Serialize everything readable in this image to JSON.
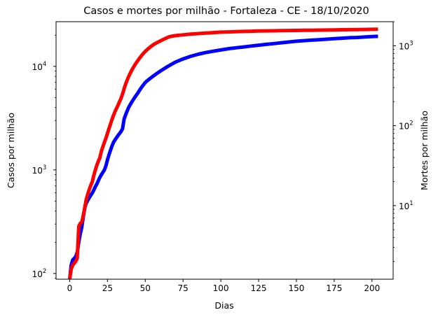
{
  "chart_data": {
    "type": "line",
    "title": "Casos e mortes por milhão - Fortaleza - CE - 18/10/2020",
    "xlabel": "Dias",
    "xlim": [
      -9,
      214
    ],
    "x_ticks": [
      0,
      25,
      50,
      75,
      100,
      125,
      150,
      175,
      200
    ],
    "grid": false,
    "y_left": {
      "label": "Casos por milhão",
      "label_color": "#0000ff",
      "scale": "log",
      "ylim": [
        88,
        27000
      ],
      "ticks": [
        {
          "value": 100,
          "base": "10",
          "exp": "2"
        },
        {
          "value": 1000,
          "base": "10",
          "exp": "3"
        },
        {
          "value": 10000,
          "base": "10",
          "exp": "4"
        }
      ]
    },
    "y_right": {
      "label": "Mortes por milhão",
      "label_color": "#ff0000",
      "scale": "log",
      "ylim": [
        1.2,
        2000
      ],
      "ticks": [
        {
          "value": 10,
          "base": "10",
          "exp": "1"
        },
        {
          "value": 100,
          "base": "10",
          "exp": "2"
        },
        {
          "value": 1000,
          "base": "10",
          "exp": "3"
        }
      ]
    },
    "series": [
      {
        "axis": "left",
        "color": "#0000ff",
        "x": [
          0,
          1,
          2,
          3,
          4,
          5,
          6,
          7,
          8,
          9,
          10,
          11,
          12,
          13,
          14,
          15,
          16,
          17,
          18,
          19,
          20,
          21,
          22,
          23,
          24,
          25,
          26,
          27,
          28,
          29,
          30,
          31,
          32,
          33,
          34,
          35,
          36,
          37,
          38,
          39,
          40,
          41,
          42,
          43,
          44,
          45,
          46,
          47,
          48,
          49,
          50,
          51,
          52,
          53,
          54,
          55,
          56,
          57,
          58,
          59,
          60,
          61,
          62,
          63,
          64,
          65,
          66,
          67,
          68,
          69,
          70,
          75,
          80,
          85,
          90,
          95,
          100,
          105,
          110,
          115,
          120,
          125,
          130,
          135,
          140,
          145,
          150,
          155,
          160,
          165,
          170,
          175,
          180,
          185,
          190,
          195,
          200,
          204
        ],
        "y": [
          88,
          120,
          135,
          140,
          145,
          160,
          200,
          240,
          280,
          350,
          430,
          480,
          510,
          540,
          570,
          600,
          640,
          690,
          730,
          790,
          850,
          900,
          950,
          1000,
          1100,
          1250,
          1400,
          1550,
          1700,
          1850,
          1950,
          2050,
          2150,
          2250,
          2350,
          2500,
          3100,
          3400,
          3700,
          4000,
          4250,
          4500,
          4750,
          5000,
          5250,
          5500,
          5800,
          6100,
          6400,
          6700,
          7000,
          7200,
          7400,
          7600,
          7800,
          8000,
          8200,
          8400,
          8600,
          8800,
          9000,
          9200,
          9400,
          9600,
          9800,
          10000,
          10200,
          10400,
          10600,
          10800,
          11000,
          11800,
          12500,
          13100,
          13600,
          14000,
          14400,
          14800,
          15100,
          15400,
          15700,
          16000,
          16300,
          16600,
          16900,
          17200,
          17500,
          17700,
          17900,
          18100,
          18300,
          18500,
          18700,
          18900,
          19000,
          19200,
          19400,
          19500
        ]
      },
      {
        "axis": "right",
        "color": "#ff0000",
        "x": [
          0,
          1,
          2,
          3,
          4,
          5,
          6,
          7,
          8,
          9,
          10,
          11,
          12,
          13,
          14,
          15,
          16,
          17,
          18,
          19,
          20,
          21,
          22,
          23,
          24,
          25,
          26,
          27,
          28,
          29,
          30,
          31,
          32,
          33,
          34,
          35,
          36,
          37,
          38,
          39,
          40,
          41,
          42,
          43,
          44,
          45,
          46,
          47,
          48,
          49,
          50,
          52,
          54,
          56,
          58,
          60,
          62,
          64,
          66,
          68,
          70,
          75,
          80,
          85,
          90,
          95,
          100,
          105,
          110,
          115,
          120,
          125,
          130,
          135,
          140,
          145,
          150,
          155,
          160,
          165,
          170,
          175,
          180,
          185,
          190,
          195,
          200,
          204
        ],
        "y": [
          1.2,
          1.6,
          1.8,
          1.9,
          2.0,
          2.2,
          5.5,
          6.0,
          6.2,
          7.5,
          9.5,
          12,
          14,
          16,
          18,
          20,
          24,
          28,
          32,
          36,
          40,
          48,
          55,
          62,
          70,
          80,
          92,
          105,
          120,
          135,
          150,
          165,
          180,
          200,
          220,
          250,
          290,
          330,
          370,
          410,
          450,
          490,
          530,
          570,
          610,
          650,
          690,
          730,
          770,
          810,
          850,
          920,
          990,
          1050,
          1100,
          1150,
          1200,
          1250,
          1300,
          1320,
          1340,
          1370,
          1400,
          1420,
          1440,
          1460,
          1480,
          1490,
          1500,
          1510,
          1520,
          1530,
          1535,
          1540,
          1545,
          1550,
          1555,
          1560,
          1565,
          1570,
          1575,
          1580,
          1585,
          1590,
          1595,
          1600,
          1605,
          1610
        ]
      }
    ]
  }
}
